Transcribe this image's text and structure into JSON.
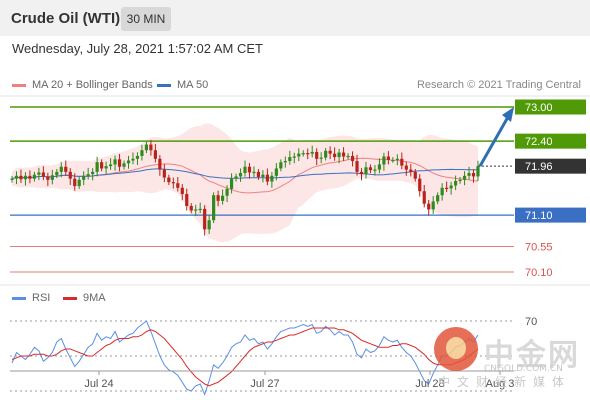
{
  "header": {
    "instrument": "Crude Oil (WTI)",
    "timeframe": "30 MIN",
    "datetime": "Wednesday, July 28, 2021 1:57:02 AM CET"
  },
  "legend": {
    "ma20_label": "MA 20 + Bollinger Bands",
    "ma50_label": "MA 50",
    "credit": "Research © 2021 Trading Central",
    "rsi_label": "RSI",
    "rsi_ma_label": "9MA"
  },
  "colors": {
    "resistance": "#4f9a06",
    "support": "#3a6fc4",
    "secondary": "#d9534f",
    "candle_up": "#2f8a1f",
    "candle_down": "#b8231b",
    "current": "#333333",
    "arrow": "#2e6eb5",
    "bollinger": "#fbdede",
    "ma20": "#f08080",
    "ma50": "#3a6fc4",
    "rsi": "#5b8ee6",
    "rsi_ma": "#d92b2b"
  },
  "watermark": {
    "name": "中金网",
    "url": "CNGOLD.COM.CN",
    "tagline": "中文财经新媒体"
  },
  "chart_data": [
    {
      "type": "candlestick",
      "subject": "Crude Oil (WTI) price, 30-minute candles",
      "ylim": [
        70.0,
        73.1
      ],
      "x_ticks": [
        "Jul 24",
        "Jul 27",
        "Jul 28",
        "Aug 3"
      ],
      "levels": [
        {
          "label": "73.00",
          "value": 73.0,
          "kind": "target"
        },
        {
          "label": "72.40",
          "value": 72.4,
          "kind": "resistance"
        },
        {
          "label": "71.96",
          "value": 71.96,
          "kind": "current"
        },
        {
          "label": "71.10",
          "value": 71.1,
          "kind": "support"
        },
        {
          "label": "70.55",
          "value": 70.55,
          "kind": "support2"
        },
        {
          "label": "70.10",
          "value": 70.1,
          "kind": "support3"
        }
      ],
      "series": [
        {
          "name": "MA 20",
          "kind": "moving-average"
        },
        {
          "name": "MA 50",
          "kind": "moving-average"
        }
      ],
      "arrow": {
        "from": 71.96,
        "to": 73.0
      },
      "close": [
        71.74,
        71.79,
        71.73,
        71.79,
        71.74,
        71.81,
        71.85,
        71.78,
        71.72,
        71.8,
        71.86,
        71.95,
        71.86,
        71.74,
        71.61,
        71.72,
        71.79,
        71.82,
        71.86,
        72.03,
        71.92,
        71.96,
        71.99,
        72.08,
        71.95,
        72.01,
        72.06,
        72.09,
        72.14,
        72.24,
        72.34,
        72.24,
        72.09,
        71.9,
        71.76,
        71.68,
        71.66,
        71.58,
        71.47,
        71.26,
        71.18,
        71.2,
        71.21,
        70.85,
        71.01,
        71.45,
        71.35,
        71.44,
        71.56,
        71.74,
        71.78,
        71.84,
        71.95,
        71.85,
        71.86,
        71.77,
        71.81,
        71.69,
        71.79,
        71.92,
        72.03,
        72.05,
        72.12,
        72.13,
        72.18,
        72.19,
        72.18,
        72.21,
        72.09,
        72.11,
        72.23,
        72.18,
        72.12,
        72.2,
        72.13,
        72.14,
        72.05,
        71.86,
        71.82,
        71.94,
        71.89,
        71.9,
        71.99,
        72.13,
        72.07,
        72.07,
        72.09,
        71.97,
        71.9,
        71.86,
        71.74,
        71.52,
        71.3,
        71.2,
        71.34,
        71.45,
        71.58,
        71.57,
        71.62,
        71.7,
        71.72,
        71.79,
        71.84,
        71.78,
        71.96
      ]
    },
    {
      "type": "line",
      "subject": "RSI (14) with 9-period moving average",
      "ylim": [
        20,
        80
      ],
      "y_ticks": [
        70
      ],
      "series": [
        {
          "name": "RSI",
          "values": [
            46,
            52,
            50,
            48,
            51,
            55,
            53,
            47,
            49,
            52,
            58,
            60,
            54,
            49,
            44,
            47,
            51,
            55,
            57,
            63,
            59,
            61,
            60,
            64,
            58,
            60,
            62,
            63,
            66,
            68,
            70,
            64,
            57,
            50,
            45,
            42,
            41,
            39,
            35,
            31,
            30,
            33,
            34,
            28,
            36,
            45,
            43,
            46,
            50,
            55,
            57,
            58,
            62,
            59,
            60,
            57,
            58,
            54,
            57,
            61,
            64,
            65,
            66,
            66,
            67,
            68,
            67,
            68,
            63,
            64,
            67,
            65,
            62,
            64,
            62,
            62,
            58,
            51,
            49,
            54,
            52,
            53,
            56,
            61,
            59,
            58,
            59,
            55,
            52,
            50,
            46,
            41,
            36,
            34,
            40,
            45,
            50,
            50,
            52,
            55,
            56,
            58,
            60,
            58,
            62
          ]
        },
        {
          "name": "9MA",
          "values": [
            48,
            49,
            50,
            50,
            50,
            51,
            51,
            51,
            50,
            50,
            51,
            53,
            54,
            54,
            53,
            52,
            51,
            50,
            50,
            52,
            54,
            56,
            57,
            59,
            60,
            60,
            60,
            61,
            61,
            62,
            64,
            65,
            64,
            62,
            60,
            57,
            54,
            51,
            48,
            44,
            41,
            38,
            36,
            34,
            33,
            34,
            35,
            37,
            39,
            41,
            44,
            47,
            50,
            53,
            55,
            56,
            57,
            58,
            58,
            59,
            60,
            61,
            62,
            62,
            63,
            64,
            65,
            66,
            66,
            66,
            66,
            66,
            66,
            65,
            65,
            64,
            63,
            61,
            59,
            58,
            57,
            56,
            55,
            55,
            55,
            56,
            56,
            57,
            57,
            56,
            55,
            53,
            51,
            48,
            46,
            45,
            45,
            45,
            45,
            46,
            47,
            48,
            50,
            52,
            54
          ]
        }
      ]
    }
  ]
}
